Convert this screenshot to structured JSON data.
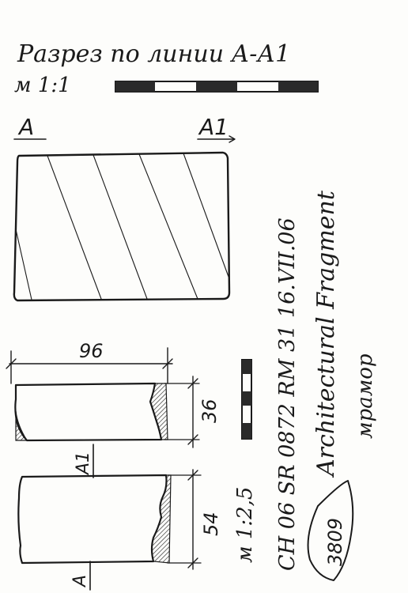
{
  "header": {
    "title": "Разрез по линии А-А1",
    "scale_top": "м 1:1"
  },
  "section": {
    "label_left": "А",
    "label_right": "А1"
  },
  "dimensions": {
    "width": "96",
    "height_top": "36",
    "height_bottom": "54"
  },
  "lower_labels": {
    "a1": "А1",
    "a": "А"
  },
  "scale_side": "м 1:2,5",
  "catalog": {
    "line1": "CH 06   SR 0872   RM 31   16.VII.06",
    "line2": "Architectural Fragment",
    "line3": "мрамор",
    "number": "3809"
  },
  "colors": {
    "ink": "#1a1a1a",
    "paper": "#fdfdfb"
  }
}
